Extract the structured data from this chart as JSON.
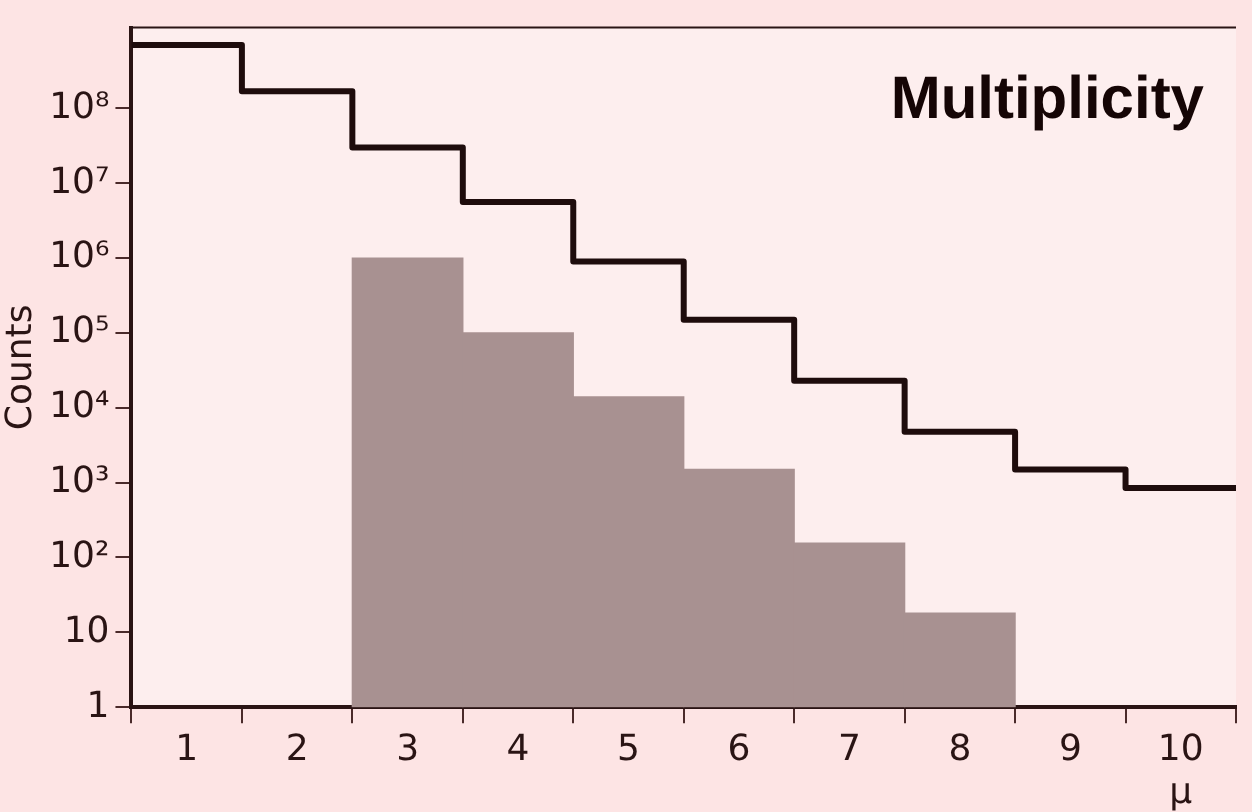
{
  "chart_data": {
    "type": "histogram",
    "title": "Multiplicity",
    "xlabel": "μ",
    "ylabel": "Counts",
    "bins": [
      0.5,
      1.5,
      2.5,
      3.5,
      4.5,
      5.5,
      6.5,
      7.5,
      8.5,
      9.5,
      10.5
    ],
    "series": [
      {
        "type": "step",
        "color": "#1e0c0c",
        "x": [
          0.5,
          1.5,
          2.5,
          3.5,
          4.5,
          5.5,
          6.5,
          7.5,
          8.5,
          9.5,
          10.5
        ],
        "values": [
          700000000,
          170000000,
          30000000,
          5600000,
          900000,
          150000,
          23000,
          4800,
          1500,
          850,
          850
        ]
      },
      {
        "color": "#a89191",
        "values": [
          null,
          null,
          1000000,
          100000,
          14000,
          1500,
          155,
          18,
          null,
          null
        ]
      }
    ],
    "log": true,
    "xlim": [
      0.5,
      10.5
    ],
    "ylim": [
      1,
      1200000000
    ],
    "xticks": [
      1,
      2,
      3,
      4,
      5,
      6,
      7,
      8,
      9,
      10
    ],
    "yticks": [
      1,
      10,
      {
        "value": 100,
        "label": "10²"
      },
      {
        "value": 1000,
        "label": "10³"
      },
      {
        "value": 10000,
        "label": "10⁴"
      },
      {
        "value": 100000,
        "label": "10⁵"
      },
      {
        "value": 1000000,
        "label": "10⁶"
      },
      {
        "value": 10000000,
        "label": "10⁷"
      },
      {
        "value": 100000000,
        "label": "10⁸"
      }
    ],
    "grid": false,
    "legend": false
  }
}
